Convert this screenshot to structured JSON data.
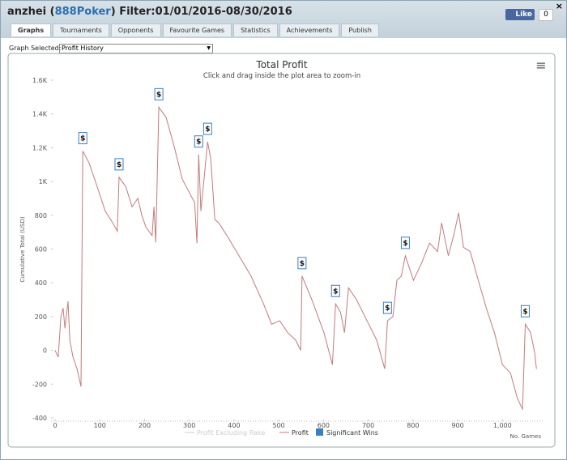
{
  "header": {
    "user": "anzhei",
    "site": "888Poker",
    "filter": "Filter:01/01/2016-08/30/2016",
    "like": "Like",
    "like_count": "0",
    "close": "×"
  },
  "tabs": [
    "Graphs",
    "Tournaments",
    "Opponents",
    "Favourite Games",
    "Statistics",
    "Achievements",
    "Publish"
  ],
  "graph_select": {
    "label": "Graph Selected:",
    "value": "Profit History"
  },
  "menu_icon": "≡",
  "chart_data": {
    "type": "line",
    "title": "Total Profit",
    "subtitle": "Click and drag inside the plot area to zoom-in",
    "y_label": "Cumulative Total (USD)",
    "x_label": "No. Games",
    "x": [
      0,
      7,
      13,
      18,
      22,
      29,
      33,
      40,
      49,
      58,
      62,
      76,
      94,
      112,
      130,
      139,
      143,
      158,
      172,
      185,
      194,
      203,
      217,
      221,
      225,
      232,
      248,
      266,
      284,
      303,
      312,
      317,
      321,
      326,
      333,
      341,
      348,
      357,
      366,
      384,
      411,
      438,
      466,
      484,
      502,
      520,
      538,
      549,
      552,
      574,
      601,
      620,
      627,
      638,
      647,
      656,
      674,
      701,
      719,
      737,
      743,
      755,
      764,
      774,
      783,
      801,
      819,
      837,
      855,
      864,
      879,
      891,
      902,
      913,
      928,
      946,
      964,
      982,
      1000,
      1018,
      1033,
      1045,
      1051,
      1063,
      1072,
      1076
    ],
    "series": [
      {
        "name": "Profit",
        "color": "#c47a7a",
        "values": [
          0,
          -40,
          200,
          250,
          130,
          290,
          60,
          -40,
          -110,
          -215,
          1180,
          1110,
          970,
          825,
          750,
          705,
          1025,
          970,
          850,
          900,
          800,
          730,
          680,
          850,
          640,
          1440,
          1380,
          1210,
          1015,
          920,
          875,
          635,
          1160,
          825,
          1015,
          1235,
          1135,
          775,
          755,
          680,
          560,
          440,
          275,
          155,
          175,
          105,
          60,
          0,
          440,
          300,
          105,
          -85,
          275,
          225,
          105,
          370,
          300,
          155,
          60,
          -110,
          175,
          200,
          415,
          440,
          560,
          415,
          515,
          635,
          585,
          755,
          560,
          680,
          815,
          610,
          585,
          415,
          250,
          105,
          -85,
          -135,
          -280,
          -350,
          155,
          105,
          -15,
          -110
        ]
      }
    ],
    "wins": {
      "name": "Significant Wins",
      "color": "#3a7fc4",
      "points": [
        {
          "x": 62,
          "y": 1180,
          "text": "$"
        },
        {
          "x": 143,
          "y": 1025,
          "text": "$"
        },
        {
          "x": 232,
          "y": 1440,
          "text": "$"
        },
        {
          "x": 321,
          "y": 1160,
          "text": "$"
        },
        {
          "x": 341,
          "y": 1235,
          "text": "$"
        },
        {
          "x": 552,
          "y": 440,
          "text": "$"
        },
        {
          "x": 627,
          "y": 275,
          "text": "$"
        },
        {
          "x": 743,
          "y": 175,
          "text": "$"
        },
        {
          "x": 783,
          "y": 560,
          "text": "$"
        },
        {
          "x": 1051,
          "y": 155,
          "text": "$"
        }
      ]
    },
    "hidden_series": {
      "name": "Profit Excluding Rake",
      "color": "#cccccc"
    },
    "xlim": [
      0,
      1090
    ],
    "ylim": [
      -400,
      1600
    ],
    "xticks": [
      0,
      100,
      200,
      300,
      400,
      500,
      600,
      700,
      800,
      900,
      {
        "value": 1000,
        "label": "1,000"
      }
    ],
    "yticks": [
      -400,
      -200,
      0,
      200,
      400,
      600,
      800,
      {
        "value": 1000,
        "label": "1K"
      },
      {
        "value": 1200,
        "label": "1.2K"
      },
      {
        "value": 1400,
        "label": "1.4K"
      },
      {
        "value": 1600,
        "label": "1.6K"
      }
    ]
  }
}
